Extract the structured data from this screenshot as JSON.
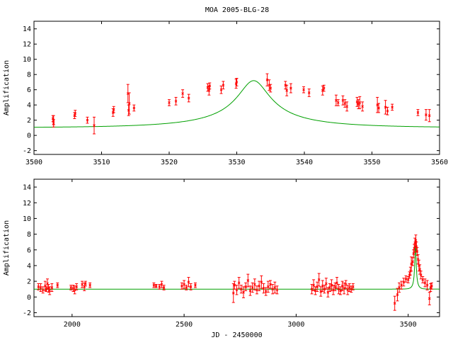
{
  "title": "MOA 2005-BLG-28",
  "colors": {
    "model": "#00a000",
    "data": "#ff0000",
    "axis": "#000000"
  },
  "chart_data": [
    {
      "type": "scatter",
      "panel": "top",
      "ylabel": "Amplification",
      "xlabel": "",
      "xlim": [
        3500,
        3560
      ],
      "ylim": [
        -2.5,
        15
      ],
      "xticks": [
        3500,
        3510,
        3520,
        3530,
        3540,
        3550,
        3560
      ],
      "yticks": [
        -2,
        0,
        2,
        4,
        6,
        8,
        10,
        12,
        14
      ],
      "model": {
        "name": "",
        "t0": 3532.5,
        "u0": 0.14,
        "tE": 17
      },
      "series": [
        {
          "name": "",
          "points": [
            [
              3502.8,
              2.2,
              0.4
            ],
            [
              3502.9,
              1.6,
              0.5
            ],
            [
              3502.9,
              2.0,
              0.6
            ],
            [
              3506.0,
              2.6,
              0.4
            ],
            [
              3506.1,
              2.9,
              0.4
            ],
            [
              3507.9,
              2.0,
              0.4
            ],
            [
              3508.9,
              1.3,
              1.1
            ],
            [
              3511.7,
              3.0,
              0.5
            ],
            [
              3511.8,
              3.4,
              0.4
            ],
            [
              3513.9,
              5.5,
              1.2
            ],
            [
              3514.0,
              3.3,
              0.7
            ],
            [
              3514.1,
              4.2,
              1.4
            ],
            [
              3514.8,
              3.6,
              0.4
            ],
            [
              3520.0,
              4.3,
              0.4
            ],
            [
              3521.0,
              4.5,
              0.5
            ],
            [
              3522.0,
              5.5,
              0.5
            ],
            [
              3522.9,
              4.9,
              0.5
            ],
            [
              3525.7,
              6.3,
              0.5
            ],
            [
              3525.9,
              5.9,
              0.6
            ],
            [
              3526.0,
              6.5,
              0.4
            ],
            [
              3527.7,
              6.0,
              0.5
            ],
            [
              3528.0,
              6.6,
              0.5
            ],
            [
              3529.9,
              6.8,
              0.6
            ],
            [
              3530.0,
              7.0,
              0.5
            ],
            [
              3534.5,
              7.3,
              0.8
            ],
            [
              3534.8,
              6.6,
              0.7
            ],
            [
              3535.0,
              6.2,
              0.5
            ],
            [
              3537.2,
              6.6,
              0.5
            ],
            [
              3537.4,
              5.9,
              0.7
            ],
            [
              3538.0,
              6.2,
              0.6
            ],
            [
              3539.9,
              6.0,
              0.4
            ],
            [
              3540.7,
              5.6,
              0.5
            ],
            [
              3542.7,
              5.9,
              0.6
            ],
            [
              3542.9,
              6.2,
              0.4
            ],
            [
              3544.7,
              4.6,
              0.7
            ],
            [
              3545.0,
              4.3,
              0.4
            ],
            [
              3545.7,
              4.6,
              0.6
            ],
            [
              3546.0,
              4.2,
              0.5
            ],
            [
              3546.3,
              3.8,
              0.6
            ],
            [
              3547.8,
              4.4,
              0.6
            ],
            [
              3548.0,
              4.1,
              0.6
            ],
            [
              3548.2,
              4.3,
              0.8
            ],
            [
              3548.6,
              3.8,
              0.6
            ],
            [
              3550.8,
              4.0,
              1.0
            ],
            [
              3551.0,
              3.6,
              0.6
            ],
            [
              3552.0,
              3.7,
              0.9
            ],
            [
              3552.3,
              3.2,
              0.5
            ],
            [
              3553.0,
              3.7,
              0.4
            ],
            [
              3556.8,
              3.0,
              0.4
            ],
            [
              3558.0,
              2.7,
              0.7
            ],
            [
              3558.5,
              2.6,
              0.8
            ]
          ]
        }
      ]
    },
    {
      "type": "scatter",
      "panel": "bottom",
      "ylabel": "Amplification",
      "xlabel": "JD - 2450000",
      "xlim": [
        1830,
        3640
      ],
      "ylim": [
        -2.5,
        15
      ],
      "xticks": [
        2000,
        2500,
        3000,
        3500
      ],
      "yticks": [
        -2,
        0,
        2,
        4,
        6,
        8,
        10,
        12,
        14
      ],
      "model": {
        "name": "",
        "t0": 3532.5,
        "u0": 0.14,
        "tE": 17
      },
      "series": [
        {
          "name": "",
          "points": [
            [
              1850,
              1.3,
              0.4
            ],
            [
              1860,
              1.2,
              0.5
            ],
            [
              1870,
              0.9,
              0.4
            ],
            [
              1880,
              1.4,
              0.6
            ],
            [
              1885,
              1.0,
              0.3
            ],
            [
              1890,
              1.7,
              0.6
            ],
            [
              1895,
              1.1,
              0.5
            ],
            [
              1900,
              0.8,
              0.5
            ],
            [
              1910,
              1.2,
              0.5
            ],
            [
              1935,
              1.5,
              0.3
            ],
            [
              1995,
              1.2,
              0.3
            ],
            [
              2005,
              1.1,
              0.4
            ],
            [
              2012,
              0.9,
              0.5
            ],
            [
              2020,
              1.3,
              0.4
            ],
            [
              2045,
              1.6,
              0.4
            ],
            [
              2055,
              1.3,
              0.5
            ],
            [
              2060,
              1.7,
              0.3
            ],
            [
              2080,
              1.5,
              0.3
            ],
            [
              2365,
              1.5,
              0.3
            ],
            [
              2375,
              1.4,
              0.2
            ],
            [
              2390,
              1.3,
              0.3
            ],
            [
              2400,
              1.6,
              0.4
            ],
            [
              2410,
              1.2,
              0.3
            ],
            [
              2490,
              1.4,
              0.4
            ],
            [
              2500,
              1.6,
              0.5
            ],
            [
              2510,
              1.2,
              0.3
            ],
            [
              2520,
              1.9,
              0.6
            ],
            [
              2530,
              1.3,
              0.4
            ],
            [
              2550,
              1.5,
              0.3
            ],
            [
              2720,
              0.5,
              1.2
            ],
            [
              2725,
              1.5,
              0.5
            ],
            [
              2735,
              0.9,
              0.6
            ],
            [
              2745,
              1.8,
              0.7
            ],
            [
              2755,
              1.0,
              0.5
            ],
            [
              2765,
              0.6,
              0.7
            ],
            [
              2775,
              1.3,
              0.5
            ],
            [
              2785,
              2.1,
              0.8
            ],
            [
              2795,
              0.8,
              0.6
            ],
            [
              2805,
              1.2,
              0.6
            ],
            [
              2815,
              1.6,
              0.7
            ],
            [
              2825,
              0.9,
              0.5
            ],
            [
              2835,
              1.4,
              0.6
            ],
            [
              2845,
              1.9,
              0.8
            ],
            [
              2855,
              1.1,
              0.6
            ],
            [
              2865,
              0.7,
              0.5
            ],
            [
              2875,
              1.3,
              0.7
            ],
            [
              2885,
              1.6,
              0.5
            ],
            [
              2895,
              1.0,
              0.6
            ],
            [
              2905,
              1.2,
              0.7
            ],
            [
              2915,
              0.9,
              0.5
            ],
            [
              3070,
              1.0,
              0.6
            ],
            [
              3078,
              1.5,
              0.7
            ],
            [
              3086,
              0.8,
              0.5
            ],
            [
              3094,
              1.3,
              0.6
            ],
            [
              3102,
              2.2,
              0.8
            ],
            [
              3110,
              0.7,
              0.6
            ],
            [
              3118,
              1.4,
              0.7
            ],
            [
              3126,
              1.0,
              0.5
            ],
            [
              3134,
              1.7,
              0.7
            ],
            [
              3142,
              0.6,
              0.6
            ],
            [
              3150,
              1.2,
              0.5
            ],
            [
              3158,
              1.5,
              0.7
            ],
            [
              3166,
              0.9,
              0.6
            ],
            [
              3174,
              1.3,
              0.5
            ],
            [
              3182,
              1.8,
              0.7
            ],
            [
              3190,
              1.0,
              0.6
            ],
            [
              3198,
              0.8,
              0.5
            ],
            [
              3206,
              1.4,
              0.6
            ],
            [
              3214,
              1.1,
              0.7
            ],
            [
              3222,
              1.6,
              0.5
            ],
            [
              3230,
              0.9,
              0.6
            ],
            [
              3238,
              1.2,
              0.5
            ],
            [
              3246,
              1.0,
              0.4
            ],
            [
              3254,
              1.3,
              0.4
            ],
            [
              3440,
              -0.8,
              0.9
            ],
            [
              3452,
              0.3,
              0.8
            ],
            [
              3460,
              1.2,
              0.6
            ],
            [
              3470,
              1.5,
              0.5
            ],
            [
              3480,
              1.9,
              0.5
            ],
            [
              3490,
              2.3,
              0.4
            ],
            [
              3500,
              2.2,
              0.4
            ],
            [
              3506,
              2.8,
              0.4
            ],
            [
              3510,
              3.3,
              0.5
            ],
            [
              3514,
              4.2,
              0.9
            ],
            [
              3520,
              4.5,
              0.5
            ],
            [
              3524,
              5.5,
              0.5
            ],
            [
              3527,
              6.2,
              0.5
            ],
            [
              3530,
              6.9,
              0.6
            ],
            [
              3534,
              7.2,
              0.7
            ],
            [
              3537,
              6.4,
              0.6
            ],
            [
              3540,
              5.8,
              0.5
            ],
            [
              3544,
              4.8,
              0.6
            ],
            [
              3548,
              4.0,
              0.7
            ],
            [
              3552,
              3.5,
              0.6
            ],
            [
              3557,
              2.8,
              0.5
            ],
            [
              3565,
              2.2,
              0.4
            ],
            [
              3575,
              1.8,
              0.5
            ],
            [
              3585,
              1.5,
              0.6
            ],
            [
              3595,
              -0.2,
              0.8
            ],
            [
              3600,
              1.2,
              0.5
            ],
            [
              3605,
              1.4,
              0.4
            ]
          ]
        }
      ]
    }
  ]
}
